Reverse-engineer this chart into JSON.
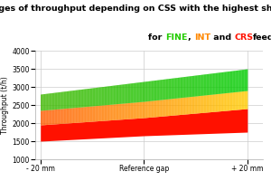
{
  "title_line1": "Ranges of throughput depending on CSS with the highest shaft speed",
  "fine_label": "FINE",
  "int_label": "INT",
  "crs_label": "CRS",
  "title_suffix": "feed",
  "fine_color": "#22cc00",
  "int_color": "#ff8800",
  "crs_color": "#ff1100",
  "ylabel": "Throughput (t/h)",
  "xtick_labels": [
    "- 20 mm",
    "Reference gap",
    "+ 20 mm"
  ],
  "ylim": [
    1000,
    4000
  ],
  "yticks": [
    1000,
    1500,
    2000,
    2500,
    3000,
    3500,
    4000
  ],
  "x_values": [
    0,
    1,
    2
  ],
  "crs_lower": [
    1500,
    1650,
    1750
  ],
  "crs_upper": [
    1950,
    2150,
    2400
  ],
  "int_lower": [
    1950,
    2150,
    2400
  ],
  "int_upper": [
    2350,
    2600,
    2900
  ],
  "fine_lower": [
    2350,
    2600,
    2900
  ],
  "fine_upper": [
    2800,
    3150,
    3500
  ],
  "bg_color": "#ffffff",
  "grid_color": "#cccccc",
  "title_fontsize": 6.8,
  "label_fontsize": 5.5,
  "tick_fontsize": 5.5
}
